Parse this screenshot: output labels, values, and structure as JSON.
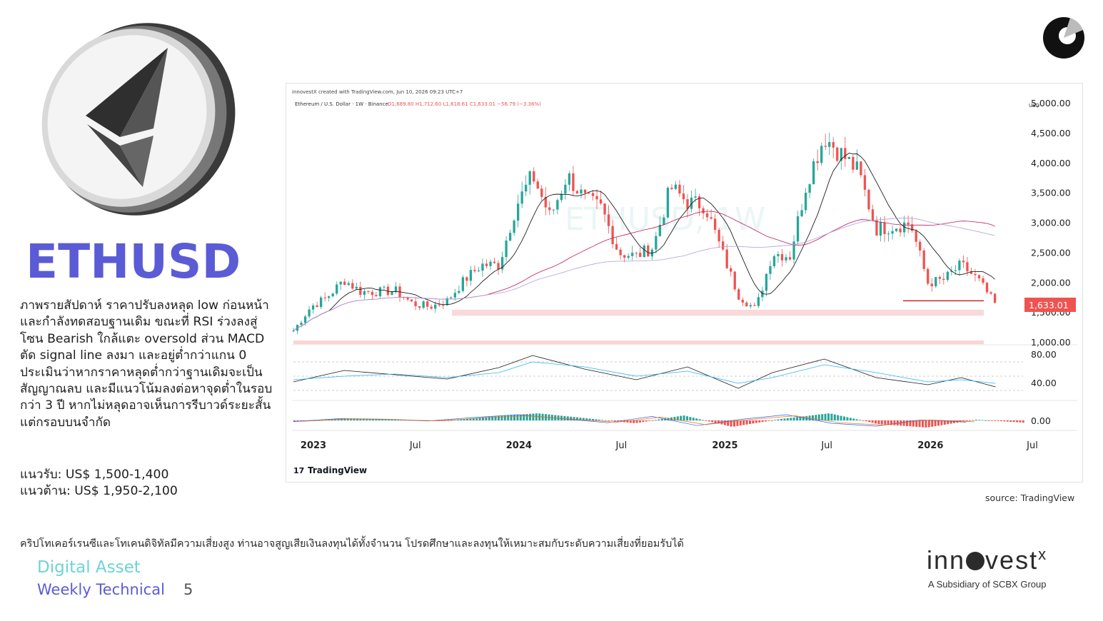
{
  "header": {
    "title": "ETHUSD",
    "description": "ภาพรายสัปดาห์ ราคาปรับลงหลุด low ก่อนหน้า และกำลังทดสอบฐานเดิม ขณะที่ RSI ร่วงลงสู่โซน Bearish ใกล้แตะ oversold ส่วน MACD ตัด signal line ลงมา และอยู่ต่ำกว่าแกน 0 ประเมินว่าหากราคาหลุดต่ำกว่าฐานเดิมจะเป็นสัญญาณลบ และมีแนวโน้มลงต่อหาจุดต่ำในรอบกว่า 3 ปี หากไม่หลุดอาจเห็นการรีบาวด์ระยะสั้น แต่กรอบบนจำกัด",
    "support": "แนวรับ: US$ 1,500-1,400",
    "resistance": "แนวต้าน: US$ 1,950-2,100"
  },
  "chart_header": {
    "created": "innovestX created with TradingView.com, Jun 10, 2026 09:23 UTC+7",
    "symbol": "Ethereum / U.S. Dollar · 1W · Binance",
    "ohlc": "O1,689.80  H1,712.60  L1,618.61  C1,633.01  −56.79 (−3.36%)",
    "currency": "USD",
    "watermark": "ETHUSD, 1W",
    "brand": "TradingView"
  },
  "source": "source: TradingView",
  "disclaimer": "คริปโทเคอร์เรนซีและโทเคนดิจิทัลมีความเสี่ยงสูง ท่านอาจสูญเสียเงินลงทุนได้ทั้งจำนวน โปรดศึกษาและลงทุนให้เหมาะสมกับระดับความเสี่ยงที่ยอมรับได้",
  "footer": {
    "line1": "Digital Asset",
    "line2": "Weekly Technical",
    "page": "5",
    "brand": "inn",
    "brand_tail": "vest",
    "brand_x": "x",
    "brand_sub": "A Subsidiary of SCBX Group"
  },
  "colors": {
    "title": "#5b5bd6",
    "up": "#26a69a",
    "down": "#ef5350",
    "ma_fast": "#1f1f1f",
    "ma_slow": "#c2185b",
    "ma_long": "#b39ddb",
    "support_zone": "#f7c9c9"
  },
  "chart_data": [
    {
      "type": "candlestick",
      "title": "",
      "x_ticks": [
        "2023",
        "Jul",
        "2024",
        "Jul",
        "2025",
        "Jul",
        "2026",
        "Jul"
      ],
      "y_ticks": [
        "5,000.00",
        "4,500.00",
        "4,000.00",
        "3,500.00",
        "3,000.00",
        "2,500.00",
        "2,000.00",
        "1,500.00",
        "1,000.00"
      ],
      "ylim": [
        1000,
        5000
      ],
      "last_price": "1,633.01",
      "close_path": [
        [
          "2023-01",
          1200
        ],
        [
          "2023-02",
          1600
        ],
        [
          "2023-03",
          1750
        ],
        [
          "2023-04",
          2050
        ],
        [
          "2023-05",
          1850
        ],
        [
          "2023-06",
          1850
        ],
        [
          "2023-07",
          1870
        ],
        [
          "2023-08",
          1650
        ],
        [
          "2023-09",
          1600
        ],
        [
          "2023-10",
          1700
        ],
        [
          "2023-11",
          2050
        ],
        [
          "2023-12",
          2300
        ],
        [
          "2024-01",
          2300
        ],
        [
          "2024-02",
          3300
        ],
        [
          "2024-03",
          3800
        ],
        [
          "2024-04",
          3100
        ],
        [
          "2024-05",
          3800
        ],
        [
          "2024-06",
          3400
        ],
        [
          "2024-07",
          3250
        ],
        [
          "2024-08",
          2500
        ],
        [
          "2024-09",
          2450
        ],
        [
          "2024-10",
          2600
        ],
        [
          "2024-11",
          3600
        ],
        [
          "2024-12",
          3350
        ],
        [
          "2025-01",
          3300
        ],
        [
          "2025-02",
          2500
        ],
        [
          "2025-03",
          1800
        ],
        [
          "2025-04",
          1550
        ],
        [
          "2025-05",
          2500
        ],
        [
          "2025-06",
          2450
        ],
        [
          "2025-07",
          3700
        ],
        [
          "2025-08",
          4450
        ],
        [
          "2025-09",
          4150
        ],
        [
          "2025-10",
          3850
        ],
        [
          "2025-11",
          2900
        ],
        [
          "2025-12",
          2950
        ],
        [
          "2026-01",
          3000
        ],
        [
          "2026-02",
          2000
        ],
        [
          "2026-03",
          2050
        ],
        [
          "2026-04",
          2300
        ],
        [
          "2026-05",
          2050
        ],
        [
          "2026-06",
          1633
        ]
      ],
      "support_zone": [
        1450,
        1550
      ],
      "resistance_line": 1700
    },
    {
      "type": "line",
      "title": "",
      "y_ticks": [
        "80.00",
        "40.00"
      ],
      "ylim": [
        20,
        90
      ],
      "x": [
        "2023-01",
        "2023-04",
        "2023-07",
        "2023-10",
        "2024-01",
        "2024-03",
        "2024-06",
        "2024-09",
        "2024-12",
        "2025-03",
        "2025-05",
        "2025-08",
        "2025-11",
        "2026-02",
        "2026-04",
        "2026-06"
      ],
      "series": [
        {
          "values": [
            42,
            58,
            52,
            46,
            62,
            79,
            60,
            45,
            63,
            33,
            55,
            74,
            48,
            38,
            48,
            35
          ]
        },
        {
          "values": [
            45,
            50,
            53,
            48,
            55,
            70,
            63,
            50,
            57,
            40,
            48,
            66,
            55,
            42,
            45,
            40
          ]
        }
      ]
    },
    {
      "type": "bar",
      "title": "",
      "y_ticks": [
        "0.00"
      ],
      "values": [
        -0.2,
        0.3,
        0.2,
        -0.1,
        0.5,
        1.0,
        0.3,
        -0.4,
        0.7,
        -0.9,
        0.2,
        1.0,
        -0.5,
        -1.0,
        0.1,
        -0.3
      ]
    }
  ]
}
